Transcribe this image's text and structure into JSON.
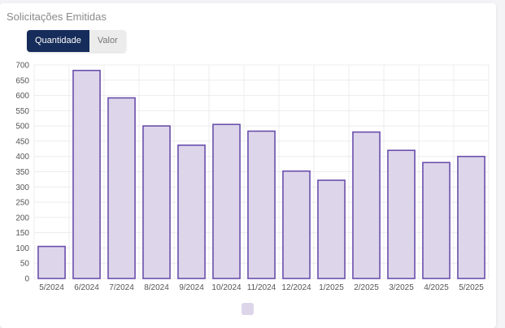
{
  "title": "Solicitações Emitidas",
  "toggle": {
    "options": [
      "Quantidade",
      "Valor"
    ],
    "selected": "Quantidade"
  },
  "colors": {
    "bar_fill": "#ddd6ea",
    "bar_stroke": "#6a4fad",
    "grid": "#ececec",
    "toggle_active": "#162c5a"
  },
  "chart_data": {
    "type": "bar",
    "categories": [
      "5/2024",
      "6/2024",
      "7/2024",
      "8/2024",
      "9/2024",
      "10/2024",
      "11/2024",
      "12/2024",
      "1/2025",
      "2/2025",
      "3/2025",
      "4/2025",
      "5/2025"
    ],
    "values": [
      105,
      682,
      592,
      500,
      437,
      505,
      483,
      352,
      322,
      480,
      420,
      380,
      400
    ],
    "ylim": [
      0,
      700
    ],
    "yticks": [
      0,
      50,
      100,
      150,
      200,
      250,
      300,
      350,
      400,
      450,
      500,
      550,
      600,
      650,
      700
    ],
    "grid": true,
    "legend": "bottom"
  }
}
